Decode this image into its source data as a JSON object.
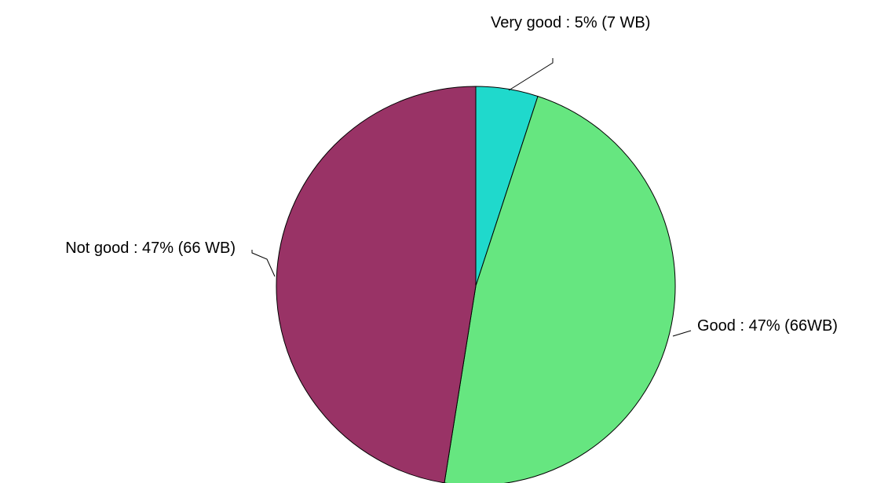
{
  "chart_data": {
    "type": "pie",
    "title": "",
    "start_angle_deg": 0,
    "direction": "clockwise",
    "legend": "none",
    "slices": [
      {
        "name": "Very good",
        "value": 7,
        "percent": 5,
        "label": "Very good : 5% (7 WB)",
        "color": "#1fd9cc"
      },
      {
        "name": "Good",
        "value": 66,
        "percent": 47,
        "label": "Good : 47% (66WB)",
        "color": "#66e680"
      },
      {
        "name": "Not good",
        "value": 66,
        "percent": 47,
        "label": "Not good : 47% (66 WB)",
        "color": "#993366"
      }
    ]
  }
}
